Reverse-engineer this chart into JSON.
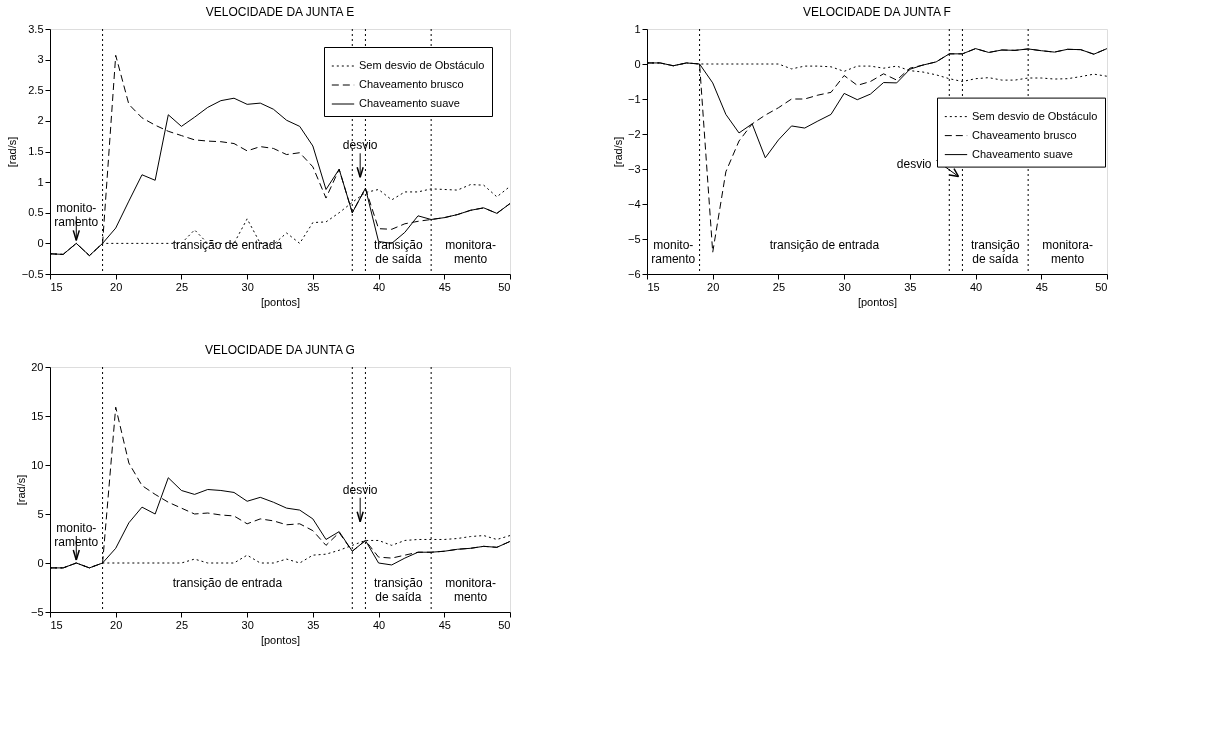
{
  "chart_data": [
    {
      "type": "line",
      "title": "VELOCIDADE DA JUNTA E",
      "xlabel": "[pontos]",
      "ylabel": "[rad/s]",
      "xlim": [
        15,
        50
      ],
      "ylim": [
        -0.5,
        3.5
      ],
      "xticks": [
        15,
        20,
        25,
        30,
        35,
        40,
        45,
        50
      ],
      "yticks": [
        -0.5,
        0,
        0.5,
        1,
        1.5,
        2,
        2.5,
        3,
        3.5
      ],
      "legend": "top right",
      "x": [
        15,
        16,
        17,
        18,
        19,
        20,
        21,
        22,
        23,
        24,
        25,
        26,
        27,
        28,
        29,
        30,
        31,
        32,
        33,
        34,
        35,
        36,
        37,
        38,
        39,
        40,
        41,
        42,
        43,
        44,
        45,
        46,
        47,
        48,
        49,
        50
      ],
      "series": [
        {
          "name": "Sem desvio de Obstáculo",
          "color": "#000000",
          "line_style": "dotted",
          "values": [
            -0.17,
            -0.18,
            0,
            -0.2,
            0,
            0,
            0,
            0,
            0,
            0,
            0,
            0.22,
            0,
            0,
            0,
            0.4,
            0,
            -0.02,
            0.17,
            0,
            0.34,
            0.35,
            0.5,
            0.67,
            0.83,
            0.88,
            0.71,
            0.84,
            0.84,
            0.89,
            0.88,
            0.87,
            0.96,
            0.95,
            0.76,
            0.93
          ]
        },
        {
          "name": "Chaveamento brusco",
          "color": "#000000",
          "line_style": "dashed",
          "values": [
            -0.17,
            -0.18,
            0,
            -0.2,
            0,
            3.07,
            2.27,
            2.05,
            1.93,
            1.83,
            1.76,
            1.69,
            1.67,
            1.66,
            1.63,
            1.51,
            1.58,
            1.55,
            1.45,
            1.48,
            1.25,
            0.74,
            1.21,
            0.5,
            0.9,
            0.24,
            0.23,
            0.32,
            0.36,
            0.39,
            0.42,
            0.47,
            0.54,
            0.58,
            0.49,
            0.65
          ]
        },
        {
          "name": "Chaveamento suave",
          "color": "#000000",
          "line_style": "solid",
          "values": [
            -0.17,
            -0.18,
            0,
            -0.2,
            0,
            0.25,
            0.69,
            1.12,
            1.03,
            2.1,
            1.91,
            2.06,
            2.22,
            2.33,
            2.37,
            2.27,
            2.29,
            2.19,
            2.01,
            1.91,
            1.59,
            0.88,
            1.21,
            0.5,
            0.9,
            0.03,
            0,
            0.18,
            0.45,
            0.39,
            0.42,
            0.47,
            0.54,
            0.58,
            0.49,
            0.65
          ]
        }
      ],
      "ref_lines": [
        {
          "axis": "x",
          "value": 19,
          "line_style": "dotted"
        },
        {
          "axis": "x",
          "value": 38,
          "line_style": "dotted"
        },
        {
          "axis": "x",
          "value": 39,
          "line_style": "dotted"
        },
        {
          "axis": "x",
          "value": 44,
          "line_style": "dotted"
        }
      ],
      "annotations": [
        {
          "text": "monito-\nramento",
          "x": 17,
          "y": 0
        },
        {
          "text": "desvio",
          "x": 38.6,
          "y": 1.03
        },
        "transição de entrada",
        "transição\nde saída",
        "monitora-\nmento"
      ]
    },
    {
      "type": "line",
      "title": "VELOCIDADE DA JUNTA F",
      "xlabel": "[pontos]",
      "ylabel": "[rad/s]",
      "xlim": [
        15,
        50
      ],
      "ylim": [
        -6,
        1
      ],
      "xticks": [
        15,
        20,
        25,
        30,
        35,
        40,
        45,
        50
      ],
      "yticks": [
        -6,
        -5,
        -4,
        -3,
        -2,
        -1,
        0,
        1
      ],
      "legend": "right",
      "x": [
        15,
        16,
        17,
        18,
        19,
        20,
        21,
        22,
        23,
        24,
        25,
        26,
        27,
        28,
        29,
        30,
        31,
        32,
        33,
        34,
        35,
        36,
        37,
        38,
        39,
        40,
        41,
        42,
        43,
        44,
        45,
        46,
        47,
        48,
        49,
        50
      ],
      "series": [
        {
          "name": "Sem desvio de Obstáculo",
          "color": "#000000",
          "line_style": "dotted",
          "values": [
            0.03,
            0.03,
            -0.05,
            0.03,
            0,
            0,
            0,
            0,
            0,
            0,
            0,
            -0.14,
            -0.06,
            -0.06,
            -0.08,
            -0.21,
            -0.06,
            -0.06,
            -0.12,
            -0.06,
            -0.19,
            -0.23,
            -0.31,
            -0.42,
            -0.5,
            -0.42,
            -0.39,
            -0.46,
            -0.46,
            -0.4,
            -0.4,
            -0.43,
            -0.42,
            -0.36,
            -0.29,
            -0.35
          ]
        },
        {
          "name": "Chaveamento brusco",
          "color": "#000000",
          "line_style": "dashed",
          "values": [
            0.03,
            0.03,
            -0.05,
            0.03,
            0,
            -5.38,
            -3.08,
            -2.2,
            -1.71,
            -1.46,
            -1.25,
            -1,
            -1,
            -0.89,
            -0.81,
            -0.33,
            -0.61,
            -0.5,
            -0.28,
            -0.46,
            -0.12,
            -0.03,
            0.06,
            0.29,
            0.29,
            0.44,
            0.33,
            0.4,
            0.39,
            0.43,
            0.38,
            0.34,
            0.42,
            0.41,
            0.28,
            0.44
          ]
        },
        {
          "name": "Chaveamento suave",
          "color": "#000000",
          "line_style": "solid",
          "values": [
            0.03,
            0.03,
            -0.05,
            0.03,
            0,
            -0.54,
            -1.44,
            -1.97,
            -1.71,
            -2.68,
            -2.17,
            -1.77,
            -1.83,
            -1.63,
            -1.44,
            -0.84,
            -1.02,
            -0.86,
            -0.53,
            -0.54,
            -0.15,
            -0.03,
            0.06,
            0.29,
            0.29,
            0.44,
            0.33,
            0.4,
            0.39,
            0.43,
            0.38,
            0.34,
            0.42,
            0.41,
            0.28,
            0.44
          ]
        }
      ],
      "ref_lines": [
        {
          "axis": "x",
          "value": 19,
          "line_style": "dotted"
        },
        {
          "axis": "x",
          "value": 38,
          "line_style": "dotted"
        },
        {
          "axis": "x",
          "value": 39,
          "line_style": "dotted"
        },
        {
          "axis": "x",
          "value": 44,
          "line_style": "dotted"
        }
      ],
      "annotations": [
        "monito-\nramento",
        "transição de entrada",
        "transição\nde saída",
        "monitora-\nmento",
        {
          "text": "desvio",
          "x": 38.7,
          "y": -3.3
        }
      ]
    },
    {
      "type": "line",
      "title": "VELOCIDADE DA JUNTA G",
      "xlabel": "[pontos]",
      "ylabel": "[rad/s]",
      "xlim": [
        15,
        50
      ],
      "ylim": [
        -5,
        20
      ],
      "xticks": [
        15,
        20,
        25,
        30,
        35,
        40,
        45,
        50
      ],
      "yticks": [
        -5,
        0,
        5,
        10,
        15,
        20
      ],
      "legend": "top right",
      "x": [
        15,
        16,
        17,
        18,
        19,
        20,
        21,
        22,
        23,
        24,
        25,
        26,
        27,
        28,
        29,
        30,
        31,
        32,
        33,
        34,
        35,
        36,
        37,
        38,
        39,
        40,
        41,
        42,
        43,
        44,
        45,
        46,
        47,
        48,
        49,
        50
      ],
      "series": [
        {
          "name": "Sem desvio de Obstáculo",
          "color": "#000000",
          "line_style": "dotted",
          "values": [
            -0.5,
            -0.5,
            0,
            -0.5,
            0,
            0,
            0,
            0,
            0,
            0,
            0,
            0.4,
            0,
            0,
            0,
            0.8,
            0,
            0,
            0.4,
            0,
            0.8,
            0.9,
            1.3,
            1.8,
            2.3,
            2.3,
            1.8,
            2.3,
            2.4,
            2.4,
            2.4,
            2.5,
            2.7,
            2.8,
            2.4,
            2.8
          ]
        },
        {
          "name": "Chaveamento brusco",
          "color": "#000000",
          "line_style": "dashed",
          "values": [
            -0.5,
            -0.5,
            0,
            -0.5,
            0,
            15.9,
            10.2,
            7.9,
            7,
            6.2,
            5.6,
            5,
            5.1,
            4.9,
            4.8,
            4,
            4.5,
            4.3,
            3.9,
            4,
            3.3,
            1.8,
            3.1,
            1.2,
            2.3,
            0.6,
            0.5,
            0.8,
            1.1,
            1.1,
            1.2,
            1.4,
            1.5,
            1.7,
            1.6,
            2.2
          ]
        },
        {
          "name": "Chaveamento suave",
          "color": "#000000",
          "line_style": "solid",
          "values": [
            -0.5,
            -0.5,
            0,
            -0.5,
            0,
            1.5,
            4.1,
            5.7,
            5,
            8.7,
            7.4,
            7,
            7.5,
            7.4,
            7.2,
            6.3,
            6.7,
            6.2,
            5.6,
            5.4,
            4.5,
            2.4,
            3.2,
            1.2,
            2.3,
            0,
            -0.2,
            0.5,
            1.1,
            1.1,
            1.2,
            1.4,
            1.5,
            1.7,
            1.6,
            2.2
          ]
        }
      ],
      "ref_lines": [
        {
          "axis": "x",
          "value": 19,
          "line_style": "dotted"
        },
        {
          "axis": "x",
          "value": 38,
          "line_style": "dotted"
        },
        {
          "axis": "x",
          "value": 39,
          "line_style": "dotted"
        },
        {
          "axis": "x",
          "value": 44,
          "line_style": "dotted"
        }
      ],
      "annotations": [
        {
          "text": "monito-\nramento",
          "x": 17,
          "y": 0
        },
        {
          "text": "desvio",
          "x": 38.6,
          "y": 3.9
        },
        "transição de entrada",
        "transição\nde saída",
        "monitora-\nmento"
      ]
    }
  ]
}
